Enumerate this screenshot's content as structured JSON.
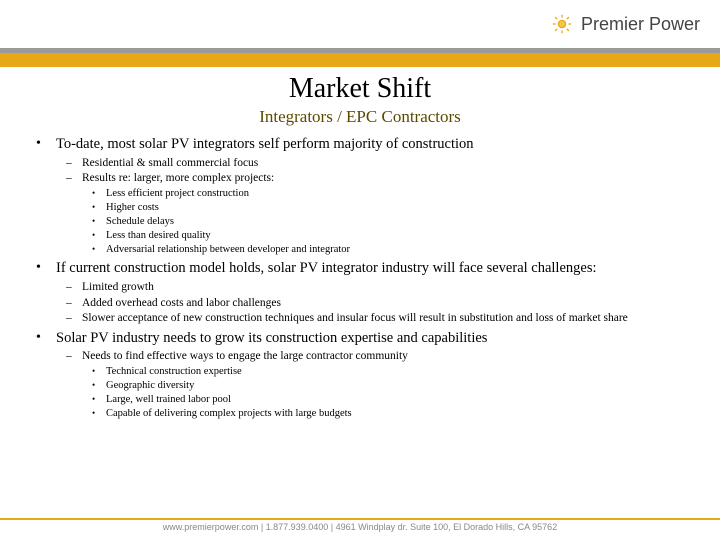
{
  "brand": {
    "name": "Premier Power",
    "logo_color": "#e6a817",
    "text_color": "#555555"
  },
  "colors": {
    "accent_bar": "#e6a817",
    "top_border": "#9a9a9a",
    "footer_bar": "#e6a817",
    "title": "#000000",
    "subtitle": "#5a4a00",
    "body": "#000000",
    "footer_text": "#9a9a9a",
    "background": "#ffffff"
  },
  "typography": {
    "title_size": 28,
    "subtitle_size": 17,
    "bullet_size": 14.5,
    "dash_size": 11.5,
    "dot_size": 10.5,
    "footer_size": 9,
    "font_family": "Georgia, serif"
  },
  "title": "Market Shift",
  "subtitle": "Integrators / EPC Contractors",
  "bullets": [
    {
      "text": "To-date, most solar PV integrators self perform majority of construction",
      "sub": [
        {
          "text": "Residential & small commercial focus"
        },
        {
          "text": "Results re: larger, more complex projects:",
          "sub": [
            "Less efficient project construction",
            "Higher costs",
            "Schedule delays",
            "Less than desired quality",
            "Adversarial relationship between developer and integrator"
          ]
        }
      ]
    },
    {
      "text": "If current construction model holds, solar PV integrator industry will face several challenges:",
      "sub": [
        {
          "text": "Limited growth"
        },
        {
          "text": "Added overhead costs and labor challenges"
        },
        {
          "text": "Slower acceptance of new construction techniques and insular focus will result in substitution and loss of market share"
        }
      ]
    },
    {
      "text": "Solar PV industry needs to grow its construction expertise and capabilities",
      "sub": [
        {
          "text": "Needs to find effective ways to engage the large contractor community",
          "sub": [
            "Technical construction expertise",
            "Geographic diversity",
            "Large, well trained labor pool",
            "Capable of delivering complex projects with large budgets"
          ]
        }
      ]
    }
  ],
  "footer": "www.premierpower.com  |  1.877.939.0400  |  4961 Windplay dr. Suite 100, El Dorado Hills, CA 95762"
}
